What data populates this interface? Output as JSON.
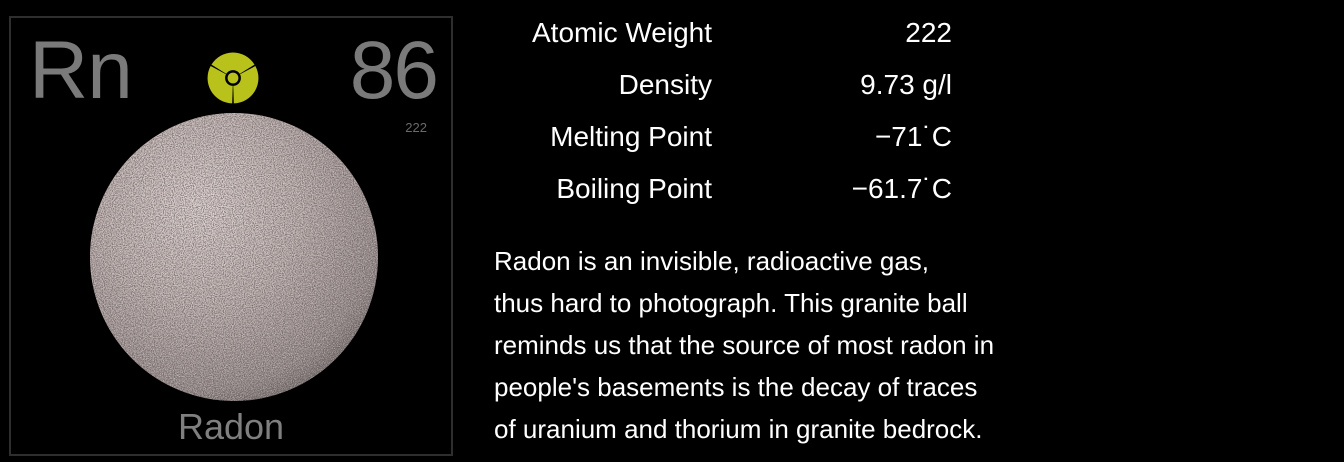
{
  "element": {
    "symbol": "Rn",
    "atomic_number": "86",
    "mass_label": "222",
    "name": "Radon"
  },
  "properties": [
    {
      "label": "Atomic Weight",
      "value": "222"
    },
    {
      "label": "Density",
      "value": "9.73 g/l"
    },
    {
      "label": "Melting Point",
      "value": "−71˙C"
    },
    {
      "label": "Boiling Point",
      "value": "−61.7˙C"
    }
  ],
  "description": [
    "Radon is an invisible, radioactive gas,",
    "thus hard to photograph.  This granite ball",
    "reminds us that the source of most radon in",
    "people's basements is the decay of traces",
    "of uranium and thorium in granite bedrock."
  ],
  "icons": {
    "hazard": "radiation-hazard-icon",
    "sample": "granite-ball-photo"
  },
  "colors": {
    "background": "#000000",
    "tile_text": "#7a7a7a",
    "hazard_yellow": "#b9c21b",
    "text": "#ffffff"
  }
}
